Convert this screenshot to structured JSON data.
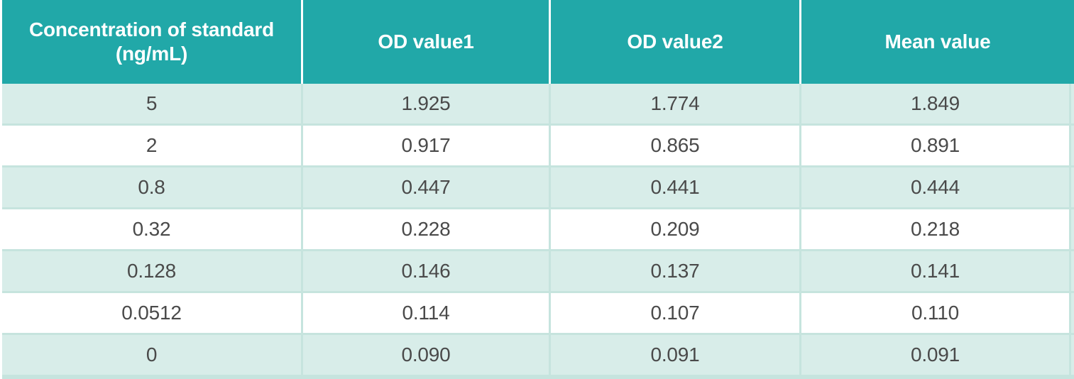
{
  "table": {
    "columns": [
      {
        "label": "Concentration of standard (ng/mL)",
        "label_lines": [
          "Concentration of standard",
          "(ng/mL)"
        ]
      },
      {
        "label": "OD value1"
      },
      {
        "label": "OD value2"
      },
      {
        "label": "Mean value"
      }
    ],
    "rows": [
      [
        "5",
        "1.925",
        "1.774",
        "1.849"
      ],
      [
        "2",
        "0.917",
        "0.865",
        "0.891"
      ],
      [
        "0.8",
        "0.447",
        "0.441",
        "0.444"
      ],
      [
        "0.32",
        "0.228",
        "0.209",
        "0.218"
      ],
      [
        "0.128",
        "0.146",
        "0.137",
        "0.141"
      ],
      [
        "0.0512",
        "0.114",
        "0.107",
        "0.110"
      ],
      [
        "0",
        "0.090",
        "0.091",
        "0.091"
      ]
    ]
  },
  "colors": {
    "header_bg": "#21a8a8",
    "header_text": "#ffffff",
    "row_alt_bg": "#d8ede9",
    "row_bg": "#ffffff",
    "grid_line": "#c6e4de",
    "body_text": "#4a4a4a"
  },
  "chart_data": {
    "type": "table",
    "columns": [
      "Concentration of standard (ng/mL)",
      "OD value1",
      "OD value2",
      "Mean value"
    ],
    "rows": [
      [
        5,
        1.925,
        1.774,
        1.849
      ],
      [
        2,
        0.917,
        0.865,
        0.891
      ],
      [
        0.8,
        0.447,
        0.441,
        0.444
      ],
      [
        0.32,
        0.228,
        0.209,
        0.218
      ],
      [
        0.128,
        0.146,
        0.137,
        0.141
      ],
      [
        0.0512,
        0.114,
        0.107,
        0.11
      ],
      [
        0,
        0.09,
        0.091,
        0.091
      ]
    ],
    "layout_hints": {
      "header_style": "teal background, white bold text, white column separators",
      "row_striping": "odd rows light teal, even rows white",
      "alignment": "all cells centered"
    }
  }
}
